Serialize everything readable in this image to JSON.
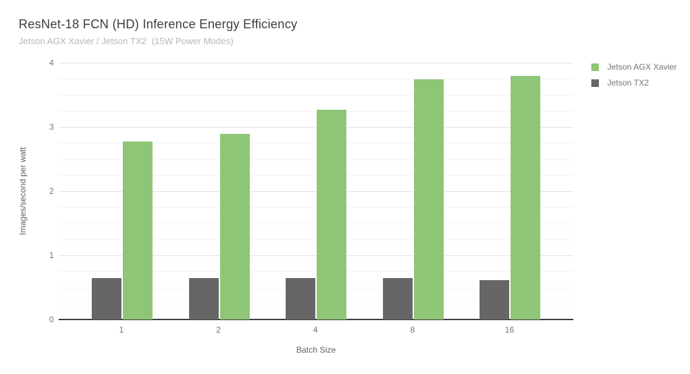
{
  "chart_data": {
    "type": "bar",
    "title": "ResNet-18 FCN (HD) Inference Energy Efficiency",
    "subtitle": "Jetson AGX Xavier / Jetson TX2  (15W Power Modes)",
    "xlabel": "Batch Size",
    "ylabel": "Images/second per watt",
    "categories": [
      "1",
      "2",
      "4",
      "8",
      "16"
    ],
    "series": [
      {
        "name": "Jetson TX2",
        "color": "#666666",
        "values": [
          0.65,
          0.65,
          0.64,
          0.64,
          0.61
        ]
      },
      {
        "name": "Jetson AGX Xavier",
        "color": "#8fc577",
        "values": [
          2.77,
          2.89,
          3.27,
          3.74,
          3.8
        ]
      }
    ],
    "ylim": [
      0,
      4
    ],
    "y_major_step": 1,
    "y_minor_step": 0.25,
    "ytick_labels": [
      "0",
      "1",
      "2",
      "3",
      "4"
    ],
    "grid": true,
    "legend_position": "top-right",
    "background": "#ffffff"
  }
}
